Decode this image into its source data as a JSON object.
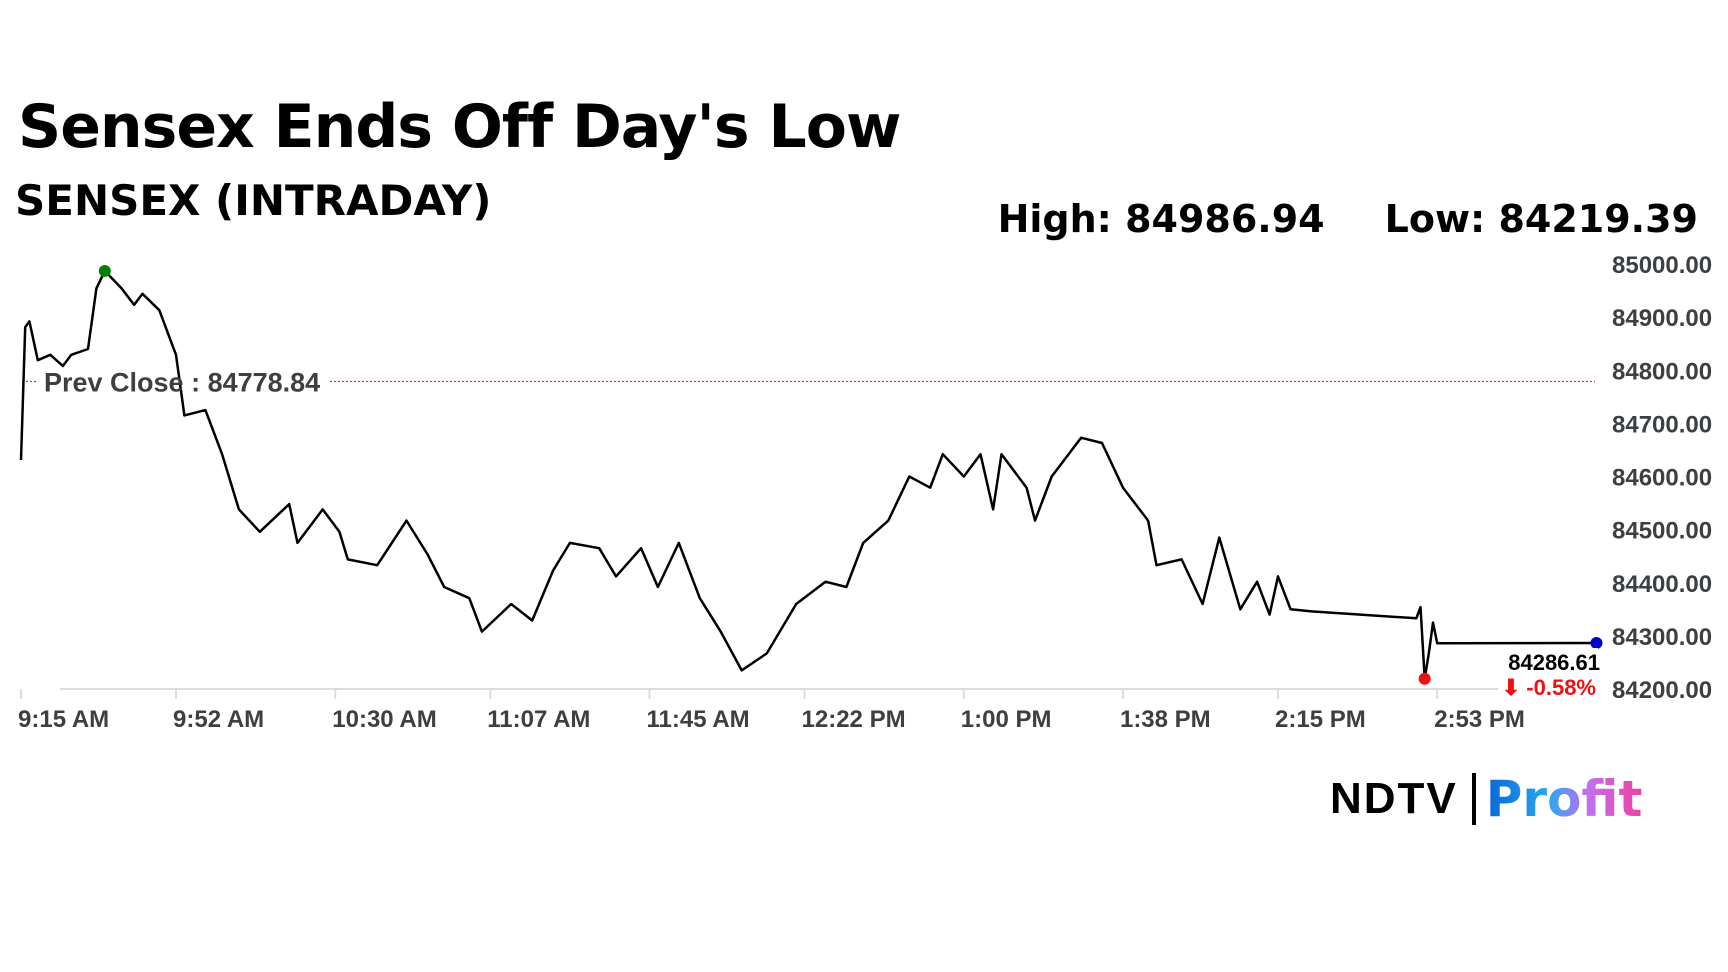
{
  "header": {
    "title": "Sensex Ends Off Day's Low",
    "subtitle": "SENSEX (INTRADAY)",
    "high_label": "High: 84986.94",
    "low_label": "Low: 84219.39"
  },
  "logo": {
    "brand": "NDTV",
    "product": "Profit"
  },
  "chart_data": {
    "type": "line",
    "title": "SENSEX (INTRADAY)",
    "xlabel": "",
    "ylabel": "",
    "ylim": [
      84200,
      85000
    ],
    "yticks": [
      "85000.00",
      "84900.00",
      "84800.00",
      "84700.00",
      "84600.00",
      "84500.00",
      "84400.00",
      "84300.00",
      "84200.00"
    ],
    "xticks": [
      "9:15 AM",
      "9:52 AM",
      "10:30 AM",
      "11:07 AM",
      "11:45 AM",
      "12:22 PM",
      "1:00 PM",
      "1:38 PM",
      "2:15 PM",
      "2:53 PM"
    ],
    "xtick_minutes": [
      0,
      37,
      75,
      112,
      150,
      187,
      225,
      263,
      300,
      338
    ],
    "prev_close": 84778.84,
    "prev_close_label": "Prev Close : 84778.84",
    "high": 84986.94,
    "low": 84219.39,
    "last": 84286.61,
    "last_label": "84286.61",
    "change_label": "⬇ -0.58%",
    "colors": {
      "line": "#000000",
      "prev_close": "#d03030",
      "high_dot": "#008000",
      "low_dot": "#ee1111",
      "last_dot": "#0000cc",
      "change": "#ee1111"
    },
    "series": [
      {
        "name": "SENSEX",
        "minutes": [
          0,
          1,
          2,
          4,
          7,
          10,
          12,
          16,
          18,
          20,
          24,
          27,
          29,
          33,
          37,
          39,
          44,
          48,
          52,
          57,
          64,
          66,
          72,
          76,
          78,
          85,
          92,
          97,
          101,
          107,
          110,
          117,
          122,
          127,
          131,
          138,
          142,
          148,
          152,
          157,
          162,
          167,
          172,
          178,
          185,
          192,
          197,
          201,
          207,
          212,
          217,
          220,
          225,
          229,
          232,
          234,
          240,
          242,
          246,
          253,
          258,
          263,
          269,
          271,
          277,
          282,
          286,
          291,
          295,
          298,
          300,
          303,
          308,
          333,
          334,
          335,
          336,
          337,
          338,
          376
        ],
        "values": [
          84631,
          84881,
          84892,
          84819,
          84829,
          84808,
          84829,
          84840,
          84954,
          84986.94,
          84954,
          84923,
          84944,
          84913,
          84829,
          84715,
          84725,
          84642,
          84538,
          84496,
          84548,
          84475,
          84538,
          84496,
          84444,
          84433,
          84517,
          84454,
          84392,
          84371,
          84308,
          84360,
          84329,
          84423,
          84475,
          84465,
          84412,
          84465,
          84392,
          84475,
          84371,
          84308,
          84235,
          84267,
          84360,
          84402,
          84392,
          84475,
          84517,
          84600,
          84579,
          84642,
          84600,
          84642,
          84538,
          84642,
          84579,
          84517,
          84600,
          84673,
          84663,
          84579,
          84517,
          84433,
          84444,
          84360,
          84485,
          84350,
          84402,
          84340,
          84412,
          84350,
          84346,
          84333,
          84354,
          84219.39,
          84267,
          84325,
          84286,
          84286.61
        ]
      }
    ]
  }
}
